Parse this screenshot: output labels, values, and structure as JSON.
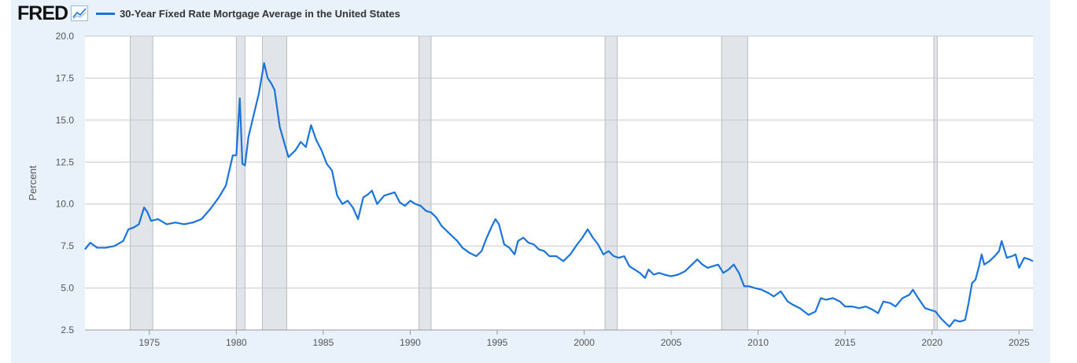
{
  "header": {
    "logo": "FRED",
    "series_title": "30-Year Fixed Rate Mortgage Average in the United States"
  },
  "colors": {
    "line": "#1a74d9",
    "recession": "#e1e5e9",
    "grid": "#c8c8c8",
    "background": "#e9f2fb"
  },
  "chart_data": {
    "type": "line",
    "title": "",
    "xlabel": "",
    "ylabel": "Percent",
    "xlim": [
      1971.3,
      2025.8
    ],
    "ylim": [
      2.5,
      20.0
    ],
    "grid": true,
    "y_ticks": [
      "2.5",
      "5.0",
      "7.5",
      "10.0",
      "12.5",
      "15.0",
      "17.5",
      "20.0"
    ],
    "x_ticks": [
      "1975",
      "1980",
      "1985",
      "1990",
      "1995",
      "2000",
      "2005",
      "2010",
      "2015",
      "2020",
      "2025"
    ],
    "recessions": [
      [
        1973.9,
        1975.2
      ],
      [
        1980.0,
        1980.5
      ],
      [
        1981.5,
        1982.9
      ],
      [
        1990.5,
        1991.2
      ],
      [
        2001.2,
        2001.9
      ],
      [
        2007.9,
        2009.4
      ],
      [
        2020.1,
        2020.3
      ]
    ],
    "series": [
      {
        "name": "30-Year Fixed Rate Mortgage Average in the United States",
        "x": [
          1971.3,
          1971.6,
          1972.0,
          1972.5,
          1973.0,
          1973.5,
          1973.8,
          1974.1,
          1974.4,
          1974.7,
          1974.9,
          1975.1,
          1975.5,
          1976.0,
          1976.5,
          1977.0,
          1977.5,
          1978.0,
          1978.5,
          1979.0,
          1979.4,
          1979.8,
          1980.0,
          1980.2,
          1980.35,
          1980.5,
          1980.7,
          1981.0,
          1981.3,
          1981.6,
          1981.8,
          1982.0,
          1982.2,
          1982.5,
          1982.8,
          1983.0,
          1983.4,
          1983.7,
          1984.0,
          1984.3,
          1984.6,
          1984.9,
          1985.2,
          1985.5,
          1985.8,
          1986.1,
          1986.4,
          1986.7,
          1987.0,
          1987.3,
          1987.6,
          1987.8,
          1988.1,
          1988.5,
          1988.8,
          1989.1,
          1989.4,
          1989.7,
          1990.0,
          1990.3,
          1990.6,
          1990.9,
          1991.2,
          1991.5,
          1991.8,
          1992.1,
          1992.4,
          1992.7,
          1993.0,
          1993.4,
          1993.8,
          1994.1,
          1994.4,
          1994.7,
          1994.9,
          1995.1,
          1995.4,
          1995.7,
          1996.0,
          1996.2,
          1996.5,
          1996.8,
          1997.1,
          1997.4,
          1997.7,
          1998.0,
          1998.4,
          1998.8,
          1999.2,
          1999.6,
          1999.9,
          2000.2,
          2000.5,
          2000.8,
          2001.1,
          2001.4,
          2001.7,
          2002.0,
          2002.3,
          2002.6,
          2002.9,
          2003.2,
          2003.5,
          2003.7,
          2004.0,
          2004.3,
          2004.6,
          2005.0,
          2005.4,
          2005.8,
          2006.2,
          2006.5,
          2006.8,
          2007.1,
          2007.4,
          2007.7,
          2008.0,
          2008.3,
          2008.6,
          2008.9,
          2009.2,
          2009.5,
          2009.8,
          2010.2,
          2010.6,
          2010.9,
          2011.3,
          2011.7,
          2012.0,
          2012.4,
          2012.9,
          2013.3,
          2013.6,
          2013.9,
          2014.3,
          2014.7,
          2015.0,
          2015.4,
          2015.8,
          2016.2,
          2016.6,
          2016.9,
          2017.2,
          2017.6,
          2017.9,
          2018.3,
          2018.7,
          2018.9,
          2019.2,
          2019.6,
          2019.9,
          2020.2,
          2020.5,
          2020.8,
          2021.0,
          2021.3,
          2021.6,
          2021.9,
          2022.1,
          2022.3,
          2022.5,
          2022.7,
          2022.85,
          2023.0,
          2023.3,
          2023.6,
          2023.85,
          2024.0,
          2024.3,
          2024.6,
          2024.8,
          2025.0,
          2025.3,
          2025.6,
          2025.8
        ],
        "values": [
          7.3,
          7.7,
          7.4,
          7.4,
          7.5,
          7.8,
          8.5,
          8.6,
          8.8,
          9.8,
          9.5,
          9.0,
          9.1,
          8.8,
          8.9,
          8.8,
          8.9,
          9.1,
          9.7,
          10.4,
          11.1,
          12.9,
          12.9,
          16.3,
          12.4,
          12.3,
          14.0,
          15.3,
          16.6,
          18.4,
          17.5,
          17.2,
          16.8,
          14.6,
          13.5,
          12.8,
          13.2,
          13.7,
          13.4,
          14.7,
          13.8,
          13.2,
          12.4,
          12.0,
          10.5,
          10.0,
          10.2,
          9.8,
          9.1,
          10.4,
          10.6,
          10.8,
          10.0,
          10.5,
          10.6,
          10.7,
          10.1,
          9.9,
          10.2,
          10.0,
          9.9,
          9.6,
          9.5,
          9.2,
          8.7,
          8.4,
          8.1,
          7.8,
          7.4,
          7.1,
          6.9,
          7.2,
          8.0,
          8.7,
          9.1,
          8.8,
          7.6,
          7.4,
          7.0,
          7.8,
          8.0,
          7.7,
          7.6,
          7.3,
          7.2,
          6.9,
          6.9,
          6.6,
          7.0,
          7.6,
          8.0,
          8.5,
          8.0,
          7.6,
          7.0,
          7.2,
          6.9,
          6.8,
          6.9,
          6.3,
          6.1,
          5.9,
          5.6,
          6.1,
          5.8,
          5.9,
          5.8,
          5.7,
          5.8,
          6.0,
          6.4,
          6.7,
          6.4,
          6.2,
          6.3,
          6.4,
          5.9,
          6.1,
          6.4,
          5.9,
          5.1,
          5.1,
          5.0,
          4.9,
          4.7,
          4.5,
          4.8,
          4.2,
          4.0,
          3.8,
          3.4,
          3.6,
          4.4,
          4.3,
          4.4,
          4.2,
          3.9,
          3.9,
          3.8,
          3.9,
          3.7,
          3.5,
          4.2,
          4.1,
          3.9,
          4.4,
          4.6,
          4.9,
          4.4,
          3.8,
          3.7,
          3.6,
          3.2,
          2.9,
          2.7,
          3.1,
          3.0,
          3.1,
          4.1,
          5.3,
          5.5,
          6.3,
          7.0,
          6.4,
          6.6,
          6.9,
          7.2,
          7.8,
          6.8,
          6.9,
          7.0,
          6.2,
          6.8,
          6.7,
          6.6
        ]
      }
    ]
  }
}
